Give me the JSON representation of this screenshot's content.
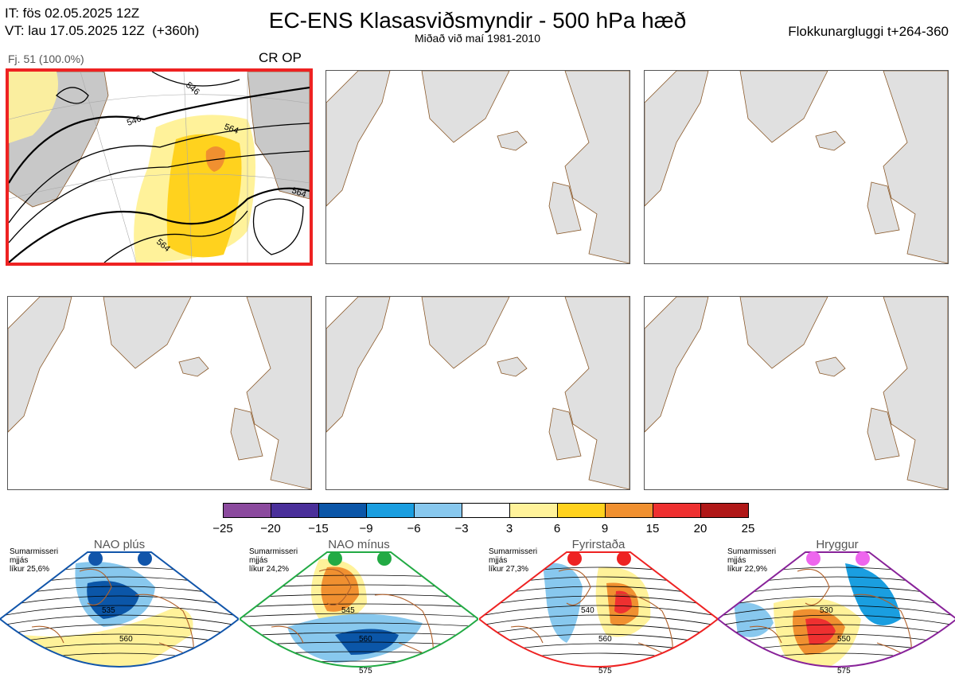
{
  "header": {
    "line1": "IT: fös 02.05.2025 12Z",
    "line2": "VT: lau 17.05.2025 12Z  (+360h)",
    "title": "EC-ENS Klasasviðsmyndir - 500 hPa hæð",
    "subtitle": "Miðað við maí 1981-2010",
    "window": "Flokkunargluggi t+264-360"
  },
  "panel1": {
    "label": "Fj. 51 (100.0%)",
    "tag": "CR OP",
    "contour_labels": [
      "546",
      "546",
      "564",
      "564",
      "564"
    ]
  },
  "colorbar": {
    "ticks": [
      "−25",
      "−20",
      "−15",
      "−9",
      "−6",
      "−3",
      "3",
      "6",
      "9",
      "15",
      "20",
      "25"
    ],
    "colors": [
      "#8b4a9e",
      "#4a2f9a",
      "#0b56a8",
      "#1a9ee0",
      "#88c8ee",
      "#ffffff",
      "#fff29a",
      "#ffd21e",
      "#f09030",
      "#ee3030",
      "#b01818"
    ]
  },
  "regimes": [
    {
      "name": "NAO plús",
      "note": "Sumarmisseri\nmjjás\nlíkur 25,6%",
      "dot_color": "#1155aa",
      "frame_color": "#1155aa",
      "labels": [
        "535",
        "560"
      ]
    },
    {
      "name": "NAO mínus",
      "note": "Sumarmisseri\nmjjás\nlíkur 24,2%",
      "dot_color": "#22aa44",
      "frame_color": "#22aa44",
      "labels": [
        "545",
        "560",
        "575"
      ]
    },
    {
      "name": "Fyrirstaða",
      "note": "Sumarmisseri\nmjjás\nlíkur 27,3%",
      "dot_color": "#ee2222",
      "frame_color": "#ee2222",
      "labels": [
        "540",
        "560",
        "575"
      ]
    },
    {
      "name": "Hryggur",
      "note": "Sumarmisseri\nmjjás\nlíkur 22,9%",
      "dot_color": "#ee66ee",
      "frame_color": "#882299",
      "labels": [
        "530",
        "550",
        "575"
      ]
    }
  ]
}
